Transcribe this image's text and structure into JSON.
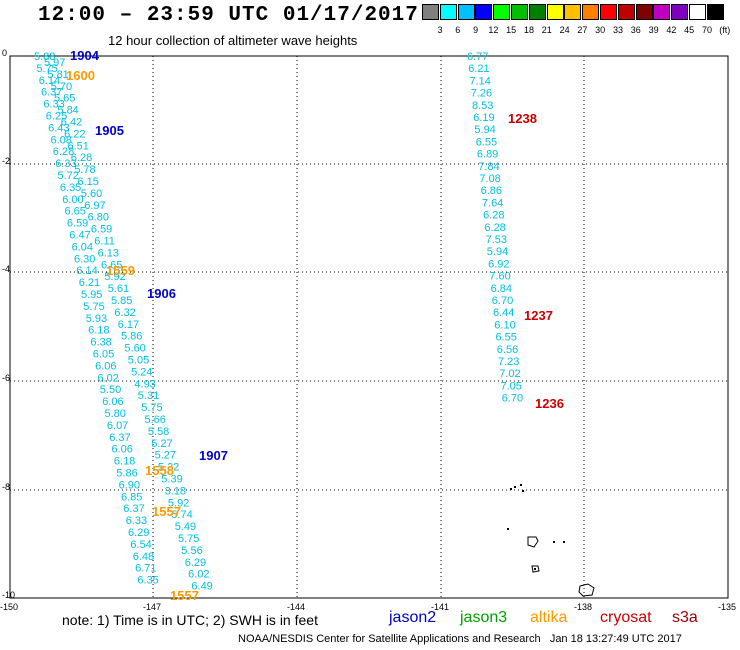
{
  "header": {
    "title": "12:00 – 23:59 UTC 01/17/2017",
    "subtitle": "12 hour collection of altimeter wave heights"
  },
  "colorbar": {
    "colors": [
      "#808080",
      "#00ffff",
      "#00c0ff",
      "#0000ff",
      "#00ff00",
      "#00c000",
      "#008000",
      "#ffff00",
      "#ffc000",
      "#ff8000",
      "#ff0000",
      "#c00000",
      "#800000",
      "#c000c0",
      "#8000c0",
      "#ffffff",
      "#000000"
    ],
    "labels": [
      "3",
      "6",
      "9",
      "12",
      "15",
      "18",
      "21",
      "24",
      "27",
      "30",
      "33",
      "36",
      "39",
      "42",
      "45",
      "70",
      "(ft)"
    ]
  },
  "axes": {
    "lon_ticks": [
      "-150",
      "-147",
      "-144",
      "-141",
      "-138",
      "-135"
    ],
    "lat_ticks": [
      "0",
      "-2",
      "-4",
      "-6",
      "-8",
      "-10"
    ]
  },
  "tracks": {
    "west_values": [
      "5.88",
      "5.97",
      "5.75",
      "5.81",
      "6.14",
      "5.70",
      "6.37",
      "5.65",
      "6.33",
      "5.84",
      "6.25",
      "6.42",
      "6.43",
      "6.22",
      "6.08",
      "6.51",
      "6.28",
      "6.28",
      "6.33",
      "5.78",
      "5.72",
      "6.15",
      "6.35",
      "5.60",
      "6.00",
      "6.97",
      "6.65",
      "6.80",
      "6.59",
      "6.59",
      "6.47",
      "6.11",
      "6.04",
      "6.13",
      "6.30",
      "6.65",
      "6.14",
      "5.92",
      "6.21",
      "5.61",
      "5.95",
      "5.85",
      "5.75",
      "6.32",
      "5.93",
      "6.17",
      "6.18",
      "5.86",
      "6.38",
      "5.60",
      "6.05",
      "5.05",
      "6.06",
      "5.24",
      "6.02",
      "4.93",
      "5.50",
      "5.31",
      "6.06",
      "5.75",
      "5.80",
      "5.66",
      "6.07",
      "5.58",
      "6.37",
      "5.27",
      "6.06",
      "5.27",
      "6.18",
      "5.32",
      "5.86",
      "5.39",
      "6.90",
      "3.18",
      "6.85",
      "5.92",
      "6.37",
      "5.74",
      "6.33",
      "5.49",
      "6.29",
      "5.75",
      "6.54",
      "5.56",
      "6.48",
      "6.29",
      "6.71",
      "6.02",
      "6.35",
      "6.49"
    ],
    "east_values": [
      "6.77",
      "6.21",
      "7.14",
      "7.26",
      "8.53",
      "6.19",
      "5.94",
      "6.55",
      "6.89",
      "7.84",
      "7.08",
      "6.86",
      "7.64",
      "6.28",
      "6.28",
      "7.53",
      "5.94",
      "6.92",
      "7.60",
      "6.84",
      "6.70",
      "6.44",
      "6.10",
      "6.55",
      "6.56",
      "7.23",
      "7.02",
      "7.05",
      "6.70"
    ]
  },
  "time_labels": [
    {
      "text": "1904",
      "sat": "jason2"
    },
    {
      "text": "1600",
      "sat": "altika"
    },
    {
      "text": "1905",
      "sat": "jason2"
    },
    {
      "text": "1559",
      "sat": "altika"
    },
    {
      "text": "1906",
      "sat": "jason2"
    },
    {
      "text": "1907",
      "sat": "jason2"
    },
    {
      "text": "1558",
      "sat": "altika"
    },
    {
      "text": "1557",
      "sat": "altika"
    },
    {
      "text": "1557",
      "sat": "altika"
    },
    {
      "text": "1238",
      "sat": "cryosat"
    },
    {
      "text": "1237",
      "sat": "cryosat"
    },
    {
      "text": "1236",
      "sat": "cryosat"
    }
  ],
  "footer": {
    "note": "note: 1) Time is in UTC; 2) SWH is in feet",
    "satellites": [
      {
        "name": "jason2",
        "color": "#0000cc"
      },
      {
        "name": "jason3",
        "color": "#00a000"
      },
      {
        "name": "altika",
        "color": "#ff9900"
      },
      {
        "name": "cryosat",
        "color": "#cc0000"
      },
      {
        "name": "s3a",
        "color": "#990000"
      }
    ],
    "credit": "NOAA/NESDIS Center for Satellite Applications and Research   Jan 18 13:27:49 UTC 2017"
  },
  "colors": {
    "value_text": "#00c0e0",
    "jason2": "#0000cc",
    "altika": "#ff9900",
    "cryosat": "#cc0000"
  }
}
